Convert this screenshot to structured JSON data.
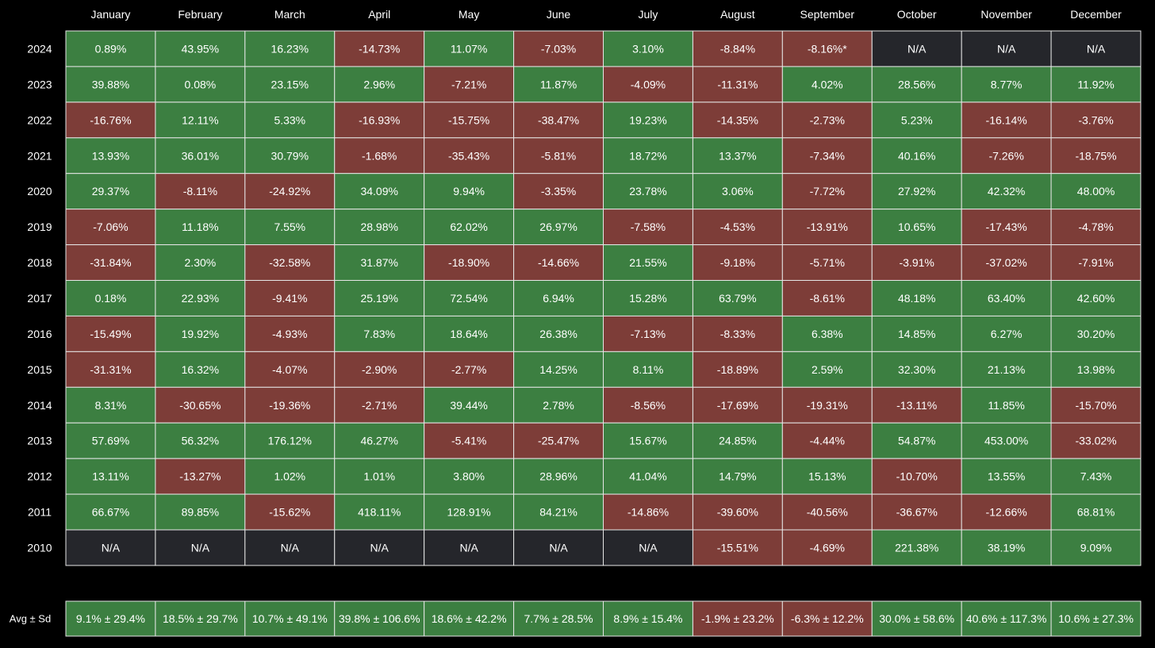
{
  "colors": {
    "background": "#000000",
    "positive": "#3c7f41",
    "negative": "#7d3d38",
    "na": "#25262b",
    "grid": "#e6e6e6",
    "text": "#ffffff"
  },
  "chart_data": {
    "type": "heatmap",
    "title": "",
    "months": [
      "January",
      "February",
      "March",
      "April",
      "May",
      "June",
      "July",
      "August",
      "September",
      "October",
      "November",
      "December"
    ],
    "rows": [
      {
        "year": "2024",
        "cells": [
          "0.89%",
          "43.95%",
          "16.23%",
          "-14.73%",
          "11.07%",
          "-7.03%",
          "3.10%",
          "-8.84%",
          "-8.16%*",
          "N/A",
          "N/A",
          "N/A"
        ]
      },
      {
        "year": "2023",
        "cells": [
          "39.88%",
          "0.08%",
          "23.15%",
          "2.96%",
          "-7.21%",
          "11.87%",
          "-4.09%",
          "-11.31%",
          "4.02%",
          "28.56%",
          "8.77%",
          "11.92%"
        ]
      },
      {
        "year": "2022",
        "cells": [
          "-16.76%",
          "12.11%",
          "5.33%",
          "-16.93%",
          "-15.75%",
          "-38.47%",
          "19.23%",
          "-14.35%",
          "-2.73%",
          "5.23%",
          "-16.14%",
          "-3.76%"
        ]
      },
      {
        "year": "2021",
        "cells": [
          "13.93%",
          "36.01%",
          "30.79%",
          "-1.68%",
          "-35.43%",
          "-5.81%",
          "18.72%",
          "13.37%",
          "-7.34%",
          "40.16%",
          "-7.26%",
          "-18.75%"
        ]
      },
      {
        "year": "2020",
        "cells": [
          "29.37%",
          "-8.11%",
          "-24.92%",
          "34.09%",
          "9.94%",
          "-3.35%",
          "23.78%",
          "3.06%",
          "-7.72%",
          "27.92%",
          "42.32%",
          "48.00%"
        ]
      },
      {
        "year": "2019",
        "cells": [
          "-7.06%",
          "11.18%",
          "7.55%",
          "28.98%",
          "62.02%",
          "26.97%",
          "-7.58%",
          "-4.53%",
          "-13.91%",
          "10.65%",
          "-17.43%",
          "-4.78%"
        ]
      },
      {
        "year": "2018",
        "cells": [
          "-31.84%",
          "2.30%",
          "-32.58%",
          "31.87%",
          "-18.90%",
          "-14.66%",
          "21.55%",
          "-9.18%",
          "-5.71%",
          "-3.91%",
          "-37.02%",
          "-7.91%"
        ]
      },
      {
        "year": "2017",
        "cells": [
          "0.18%",
          "22.93%",
          "-9.41%",
          "25.19%",
          "72.54%",
          "6.94%",
          "15.28%",
          "63.79%",
          "-8.61%",
          "48.18%",
          "63.40%",
          "42.60%"
        ]
      },
      {
        "year": "2016",
        "cells": [
          "-15.49%",
          "19.92%",
          "-4.93%",
          "7.83%",
          "18.64%",
          "26.38%",
          "-7.13%",
          "-8.33%",
          "6.38%",
          "14.85%",
          "6.27%",
          "30.20%"
        ]
      },
      {
        "year": "2015",
        "cells": [
          "-31.31%",
          "16.32%",
          "-4.07%",
          "-2.90%",
          "-2.77%",
          "14.25%",
          "8.11%",
          "-18.89%",
          "2.59%",
          "32.30%",
          "21.13%",
          "13.98%"
        ]
      },
      {
        "year": "2014",
        "cells": [
          "8.31%",
          "-30.65%",
          "-19.36%",
          "-2.71%",
          "39.44%",
          "2.78%",
          "-8.56%",
          "-17.69%",
          "-19.31%",
          "-13.11%",
          "11.85%",
          "-15.70%"
        ]
      },
      {
        "year": "2013",
        "cells": [
          "57.69%",
          "56.32%",
          "176.12%",
          "46.27%",
          "-5.41%",
          "-25.47%",
          "15.67%",
          "24.85%",
          "-4.44%",
          "54.87%",
          "453.00%",
          "-33.02%"
        ]
      },
      {
        "year": "2012",
        "cells": [
          "13.11%",
          "-13.27%",
          "1.02%",
          "1.01%",
          "3.80%",
          "28.96%",
          "41.04%",
          "14.79%",
          "15.13%",
          "-10.70%",
          "13.55%",
          "7.43%"
        ]
      },
      {
        "year": "2011",
        "cells": [
          "66.67%",
          "89.85%",
          "-15.62%",
          "418.11%",
          "128.91%",
          "84.21%",
          "-14.86%",
          "-39.60%",
          "-40.56%",
          "-36.67%",
          "-12.66%",
          "68.81%"
        ]
      },
      {
        "year": "2010",
        "cells": [
          "N/A",
          "N/A",
          "N/A",
          "N/A",
          "N/A",
          "N/A",
          "N/A",
          "-15.51%",
          "-4.69%",
          "221.38%",
          "38.19%",
          "9.09%"
        ]
      }
    ],
    "summary": {
      "label": "Avg ± Sd",
      "cells": [
        "9.1% ± 29.4%",
        "18.5% ± 29.7%",
        "10.7% ± 49.1%",
        "39.8% ± 106.6%",
        "18.6% ± 42.2%",
        "7.7% ± 28.5%",
        "8.9% ± 15.4%",
        "-1.9% ± 23.2%",
        "-6.3% ± 12.2%",
        "30.0% ± 58.6%",
        "40.6% ± 117.3%",
        "10.6% ± 27.3%"
      ],
      "means": [
        9.1,
        18.5,
        10.7,
        39.8,
        18.6,
        7.7,
        8.9,
        -1.9,
        -6.3,
        30.0,
        40.6,
        10.6
      ]
    }
  }
}
